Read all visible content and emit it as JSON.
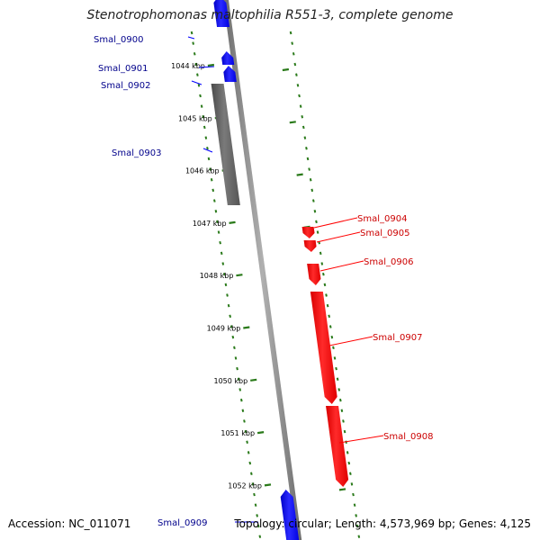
{
  "title": "Stenotrophomonas maltophilia R551-3, complete genome",
  "accession": "Accession: NC_011071",
  "summary": "Topology: circular; Length: 4,573,969 bp; Genes: 4,125",
  "colors": {
    "forward": "#0000ff",
    "reverse": "#ff0000",
    "other": "#666666",
    "backbone": "#888888",
    "tick": "#2a7a1a",
    "forward_label": "#00008b",
    "reverse_label": "#cc0000"
  },
  "ticks": [
    {
      "label": "1044 kbp",
      "pos": 1044
    },
    {
      "label": "1045 kbp",
      "pos": 1045
    },
    {
      "label": "1046 kbp",
      "pos": 1046
    },
    {
      "label": "1047 kbp",
      "pos": 1047
    },
    {
      "label": "1048 kbp",
      "pos": 1048
    },
    {
      "label": "1049 kbp",
      "pos": 1049
    },
    {
      "label": "1050 kbp",
      "pos": 1050
    },
    {
      "label": "1051 kbp",
      "pos": 1051
    },
    {
      "label": "1052 kbp",
      "pos": 1052
    }
  ],
  "genes": [
    {
      "name": "Smal_0900",
      "strand": "forward"
    },
    {
      "name": "Smal_0901",
      "strand": "forward"
    },
    {
      "name": "Smal_0902",
      "strand": "forward"
    },
    {
      "name": "Smal_0903",
      "strand": "other"
    },
    {
      "name": "Smal_0904",
      "strand": "reverse"
    },
    {
      "name": "Smal_0905",
      "strand": "reverse"
    },
    {
      "name": "Smal_0906",
      "strand": "reverse"
    },
    {
      "name": "Smal_0907",
      "strand": "reverse"
    },
    {
      "name": "Smal_0908",
      "strand": "reverse"
    },
    {
      "name": "Smal_0909",
      "strand": "forward"
    }
  ]
}
